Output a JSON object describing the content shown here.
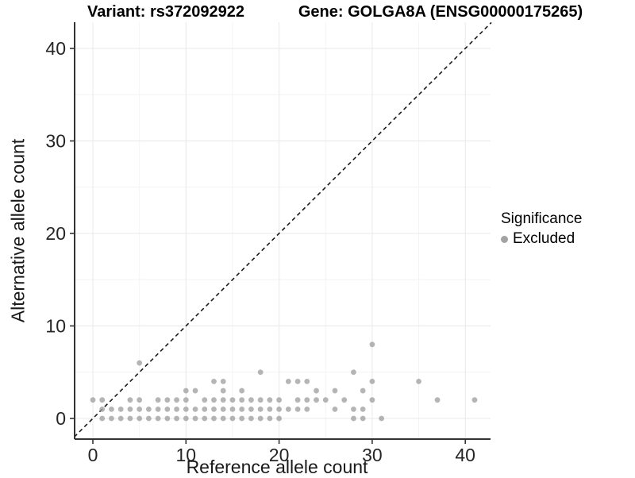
{
  "header": {
    "variant_title": "Variant: rs372092922",
    "gene_title": "Gene: GOLGA8A (ENSG00000175265)"
  },
  "legend": {
    "title": "Significance",
    "items": [
      {
        "label": "Excluded",
        "color": "#a3a3a3"
      }
    ]
  },
  "chart_data": {
    "type": "scatter",
    "title_left": "Variant: rs372092922",
    "title_right": "Gene: GOLGA8A (ENSG00000175265)",
    "xlabel": "Reference allele count",
    "ylabel": "Alternative allele count",
    "xlim": [
      -2.0,
      42.8
    ],
    "ylim": [
      -2.2,
      42.8
    ],
    "xticks": [
      0,
      10,
      20,
      30,
      40
    ],
    "yticks": [
      0,
      10,
      20,
      30,
      40
    ],
    "minor_xticks": [
      5,
      15,
      25,
      35
    ],
    "minor_yticks": [
      5,
      15,
      25,
      35
    ],
    "grid": "on",
    "legend_position": "right",
    "identity_line": {
      "type": "abline",
      "slope": 1,
      "intercept": 0,
      "style": "dashed",
      "color": "#1a1a1a"
    },
    "colors": {
      "point": "#a0a0a0",
      "axis": "#333333",
      "tick_label": "#262626",
      "grid_major": "#e8e8e8",
      "grid_minor": "#f4f4f4"
    },
    "series": [
      {
        "name": "Excluded",
        "color": "#a0a0a0",
        "points": [
          [
            1,
            0
          ],
          [
            2,
            0
          ],
          [
            3,
            0
          ],
          [
            4,
            0
          ],
          [
            5,
            0
          ],
          [
            6,
            0
          ],
          [
            7,
            0
          ],
          [
            8,
            0
          ],
          [
            9,
            0
          ],
          [
            10,
            0
          ],
          [
            11,
            0
          ],
          [
            12,
            0
          ],
          [
            13,
            0
          ],
          [
            14,
            0
          ],
          [
            15,
            0
          ],
          [
            16,
            0
          ],
          [
            17,
            0
          ],
          [
            18,
            0
          ],
          [
            19,
            0
          ],
          [
            20,
            0
          ],
          [
            28,
            0
          ],
          [
            29,
            0
          ],
          [
            31,
            0
          ],
          [
            1,
            1
          ],
          [
            2,
            1
          ],
          [
            3,
            1
          ],
          [
            4,
            1
          ],
          [
            5,
            1
          ],
          [
            6,
            1
          ],
          [
            7,
            1
          ],
          [
            8,
            1
          ],
          [
            9,
            1
          ],
          [
            10,
            1
          ],
          [
            11,
            1
          ],
          [
            12,
            1
          ],
          [
            13,
            1
          ],
          [
            14,
            1
          ],
          [
            15,
            1
          ],
          [
            16,
            1
          ],
          [
            17,
            1
          ],
          [
            18,
            1
          ],
          [
            19,
            1
          ],
          [
            20,
            1
          ],
          [
            21,
            1
          ],
          [
            22,
            1
          ],
          [
            23,
            1
          ],
          [
            26,
            1
          ],
          [
            28,
            1
          ],
          [
            29,
            1
          ],
          [
            0,
            2
          ],
          [
            1,
            2
          ],
          [
            4,
            2
          ],
          [
            5,
            2
          ],
          [
            7,
            2
          ],
          [
            8,
            2
          ],
          [
            9,
            2
          ],
          [
            10,
            2
          ],
          [
            12,
            2
          ],
          [
            13,
            2
          ],
          [
            14,
            2
          ],
          [
            15,
            2
          ],
          [
            16,
            2
          ],
          [
            17,
            2
          ],
          [
            18,
            2
          ],
          [
            19,
            2
          ],
          [
            20,
            2
          ],
          [
            22,
            2
          ],
          [
            23,
            2
          ],
          [
            24,
            2
          ],
          [
            25,
            2
          ],
          [
            27,
            2
          ],
          [
            30,
            2
          ],
          [
            37,
            2
          ],
          [
            41,
            2
          ],
          [
            10,
            3
          ],
          [
            11,
            3
          ],
          [
            14,
            3
          ],
          [
            16,
            3
          ],
          [
            24,
            3
          ],
          [
            26,
            3
          ],
          [
            29,
            3
          ],
          [
            13,
            4
          ],
          [
            14,
            4
          ],
          [
            21,
            4
          ],
          [
            22,
            4
          ],
          [
            23,
            4
          ],
          [
            30,
            4
          ],
          [
            35,
            4
          ],
          [
            18,
            5
          ],
          [
            28,
            5
          ],
          [
            5,
            6
          ],
          [
            30,
            8
          ]
        ]
      }
    ]
  }
}
